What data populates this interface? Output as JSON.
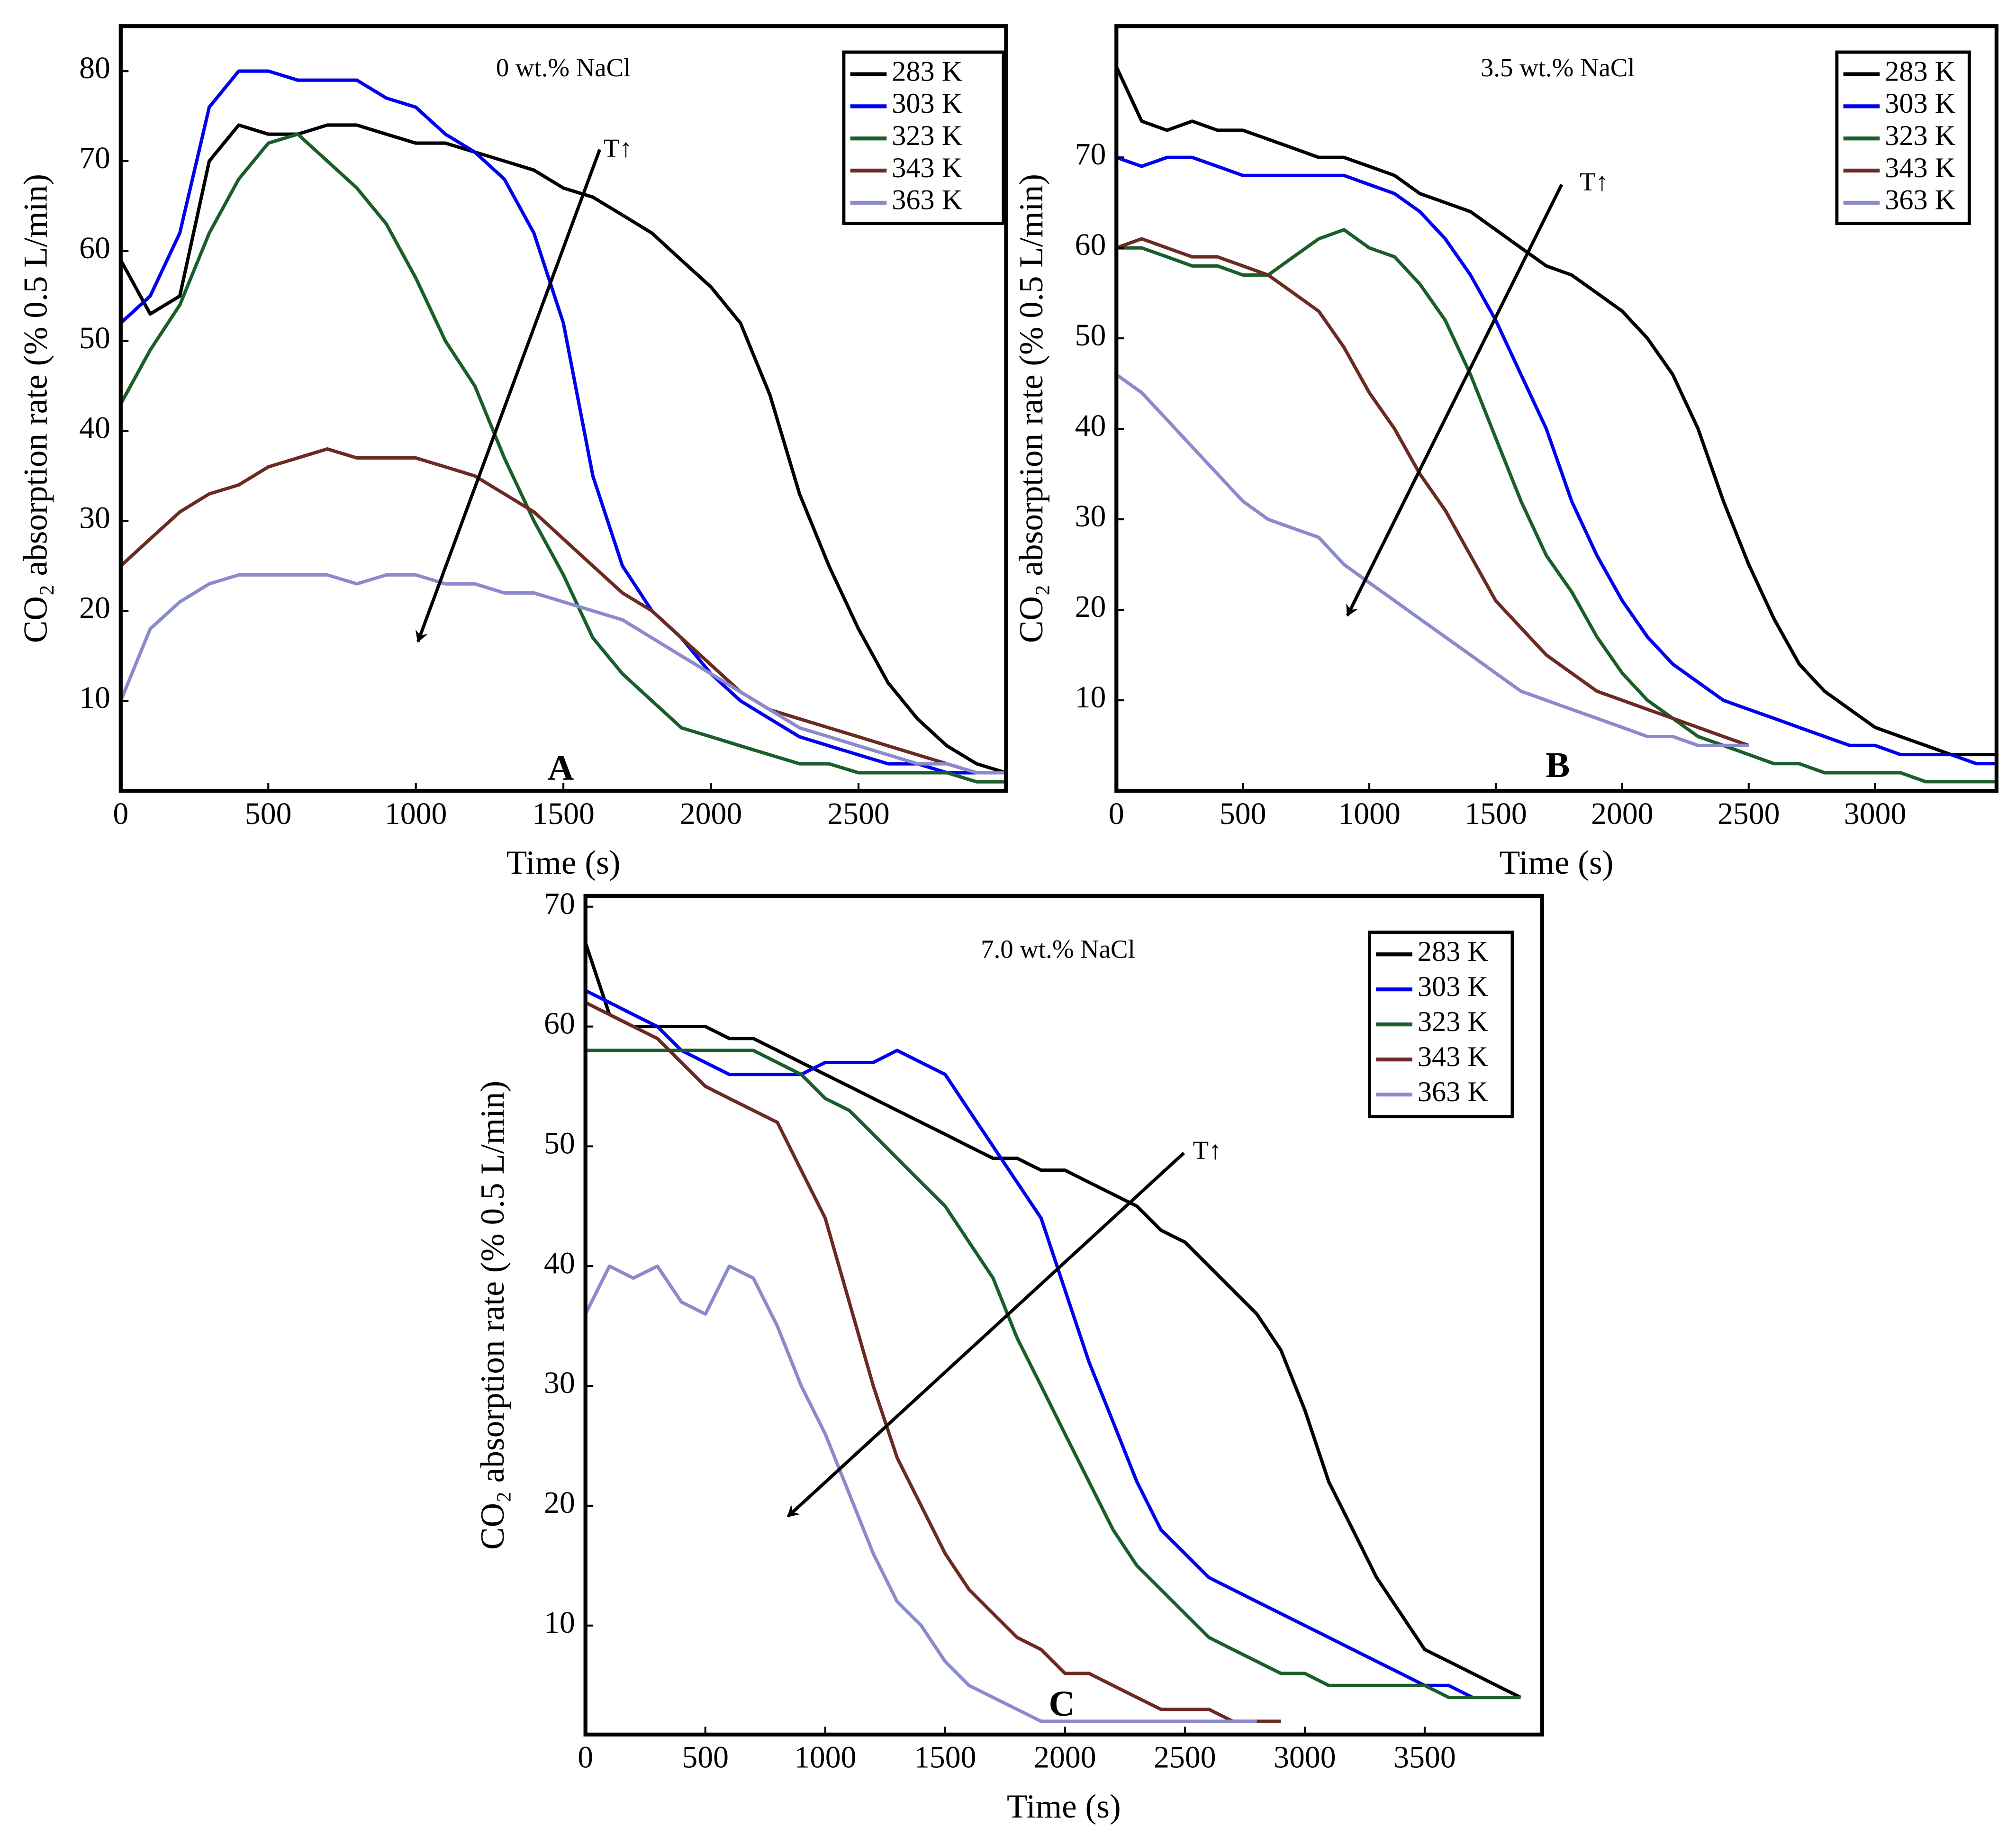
{
  "chart_data": [
    {
      "type": "line",
      "title": "0 wt.% NaCl",
      "label": "A",
      "annotation": "T↑",
      "xlabel": "Time (s)",
      "ylabel": "CO₂ absorption rate (% 0.5 L/min)",
      "xlim": [
        0,
        3000
      ],
      "ylim": [
        0,
        85
      ],
      "xticks": [
        0,
        500,
        1000,
        1500,
        2000,
        2500
      ],
      "yticks": [
        10,
        20,
        30,
        40,
        50,
        60,
        70,
        80
      ],
      "x": [
        0,
        100,
        200,
        300,
        400,
        500,
        600,
        700,
        800,
        900,
        1000,
        1100,
        1200,
        1300,
        1400,
        1500,
        1600,
        1700,
        1800,
        1900,
        2000,
        2100,
        2200,
        2300,
        2400,
        2500,
        2600,
        2700,
        2800,
        2900,
        3000
      ],
      "series": [
        {
          "name": "283 K",
          "color": "#000000",
          "values": [
            59,
            53,
            55,
            70,
            74,
            73,
            73,
            74,
            74,
            73,
            72,
            72,
            71,
            70,
            69,
            67,
            66,
            64,
            62,
            59,
            56,
            52,
            44,
            33,
            25,
            18,
            12,
            8,
            5,
            3,
            2
          ]
        },
        {
          "name": "303 K",
          "color": "#0000ee",
          "values": [
            52,
            55,
            62,
            76,
            80,
            80,
            79,
            79,
            79,
            77,
            76,
            73,
            71,
            68,
            62,
            52,
            35,
            25,
            20,
            17,
            13,
            10,
            8,
            6,
            5,
            4,
            3,
            3,
            2,
            2,
            2
          ]
        },
        {
          "name": "323 K",
          "color": "#1a5e2a",
          "values": [
            43,
            49,
            54,
            62,
            68,
            72,
            73,
            70,
            67,
            63,
            57,
            50,
            45,
            37,
            30,
            24,
            17,
            13,
            10,
            7,
            6,
            5,
            4,
            3,
            3,
            2,
            2,
            2,
            2,
            1,
            1
          ]
        },
        {
          "name": "343 K",
          "color": "#6b2a22",
          "values": [
            25,
            28,
            31,
            33,
            34,
            36,
            37,
            38,
            37,
            37,
            37,
            36,
            35,
            33,
            31,
            28,
            25,
            22,
            20,
            17,
            14,
            11,
            9,
            8,
            7,
            6,
            5,
            4,
            3,
            2,
            2
          ]
        },
        {
          "name": "363 K",
          "color": "#8a8acc",
          "values": [
            10,
            18,
            21,
            23,
            24,
            24,
            24,
            24,
            23,
            24,
            24,
            23,
            23,
            22,
            22,
            21,
            20,
            19,
            17,
            15,
            13,
            11,
            9,
            7,
            6,
            5,
            4,
            3,
            3,
            2,
            2
          ]
        }
      ]
    },
    {
      "type": "line",
      "title": "3.5 wt.% NaCl",
      "label": "B",
      "annotation": "T↑",
      "xlabel": "Time (s)",
      "ylabel": "CO₂ absorption rate (% 0.5 L/min)",
      "xlim": [
        0,
        3480
      ],
      "ylim": [
        0,
        84.5
      ],
      "xticks": [
        0,
        500,
        1000,
        1500,
        2000,
        2500,
        3000
      ],
      "yticks": [
        10,
        20,
        30,
        40,
        50,
        60,
        70
      ],
      "x": [
        0,
        100,
        200,
        300,
        400,
        500,
        600,
        700,
        800,
        900,
        1000,
        1100,
        1200,
        1300,
        1400,
        1500,
        1600,
        1700,
        1800,
        1900,
        2000,
        2100,
        2200,
        2300,
        2400,
        2500,
        2600,
        2700,
        2800,
        2900,
        3000,
        3100,
        3200,
        3300,
        3400,
        3500
      ],
      "series": [
        {
          "name": "283 K",
          "color": "#000000",
          "values": [
            80,
            74,
            73,
            74,
            73,
            73,
            72,
            71,
            70,
            70,
            69,
            68,
            66,
            65,
            64,
            62,
            60,
            58,
            57,
            55,
            53,
            50,
            46,
            40,
            32,
            25,
            19,
            14,
            11,
            9,
            7,
            6,
            5,
            4,
            4,
            4
          ]
        },
        {
          "name": "303 K",
          "color": "#0000ee",
          "values": [
            70,
            69,
            70,
            70,
            69,
            68,
            68,
            68,
            68,
            68,
            67,
            66,
            64,
            61,
            57,
            52,
            46,
            40,
            32,
            26,
            21,
            17,
            14,
            12,
            10,
            9,
            8,
            7,
            6,
            5,
            5,
            4,
            4,
            4,
            3,
            3
          ]
        },
        {
          "name": "323 K",
          "color": "#1a5e2a",
          "values": [
            60,
            60,
            59,
            58,
            58,
            57,
            57,
            59,
            61,
            62,
            60,
            59,
            56,
            52,
            46,
            39,
            32,
            26,
            22,
            17,
            13,
            10,
            8,
            6,
            5,
            4,
            3,
            3,
            2,
            2,
            2,
            2,
            1,
            1,
            1,
            1
          ]
        },
        {
          "name": "343 K",
          "color": "#6b2a22",
          "values": [
            60,
            61,
            60,
            59,
            59,
            58,
            57,
            55,
            53,
            49,
            44,
            40,
            35,
            31,
            26,
            21,
            18,
            15,
            13,
            11,
            10,
            9,
            8,
            7,
            6,
            5,
            null,
            null,
            null,
            null,
            null,
            null,
            null,
            null,
            null,
            null
          ]
        },
        {
          "name": "363 K",
          "color": "#8a8acc",
          "values": [
            46,
            44,
            41,
            38,
            35,
            32,
            30,
            29,
            28,
            25,
            23,
            21,
            19,
            17,
            15,
            13,
            11,
            10,
            9,
            8,
            7,
            6,
            6,
            5,
            5,
            5,
            null,
            null,
            null,
            null,
            null,
            null,
            null,
            null,
            null,
            null
          ]
        }
      ]
    },
    {
      "type": "line",
      "title": "7.0 wt.% NaCl",
      "label": "C",
      "annotation": "T↑",
      "xlabel": "Time (s)",
      "ylabel": "CO₂ absorption rate (% 0.5 L/min)",
      "xlim": [
        0,
        3990
      ],
      "ylim": [
        0.9,
        70.9
      ],
      "xticks": [
        0,
        500,
        1000,
        1500,
        2000,
        2500,
        3000,
        3500
      ],
      "yticks": [
        10,
        20,
        30,
        40,
        50,
        60,
        70
      ],
      "x": [
        0,
        100,
        200,
        300,
        400,
        500,
        600,
        700,
        800,
        900,
        1000,
        1100,
        1200,
        1300,
        1400,
        1500,
        1600,
        1700,
        1800,
        1900,
        2000,
        2100,
        2200,
        2300,
        2400,
        2500,
        2600,
        2700,
        2800,
        2900,
        3000,
        3100,
        3200,
        3300,
        3400,
        3500,
        3600,
        3700,
        3800,
        3900
      ],
      "series": [
        {
          "name": "283 K",
          "color": "#000000",
          "values": [
            67,
            61,
            60,
            60,
            60,
            60,
            59,
            59,
            58,
            57,
            56,
            55,
            54,
            53,
            52,
            51,
            50,
            49,
            49,
            48,
            48,
            47,
            46,
            45,
            43,
            42,
            40,
            38,
            36,
            33,
            28,
            22,
            18,
            14,
            11,
            8,
            7,
            6,
            5,
            4
          ]
        },
        {
          "name": "303 K",
          "color": "#0000ee",
          "values": [
            63,
            62,
            61,
            60,
            58,
            57,
            56,
            56,
            56,
            56,
            57,
            57,
            57,
            58,
            57,
            56,
            53,
            50,
            47,
            44,
            38,
            32,
            27,
            22,
            18,
            16,
            14,
            13,
            12,
            11,
            10,
            9,
            8,
            7,
            6,
            5,
            5,
            4,
            4,
            4
          ]
        },
        {
          "name": "323 K",
          "color": "#1a5e2a",
          "values": [
            58,
            58,
            58,
            58,
            58,
            58,
            58,
            58,
            57,
            56,
            54,
            53,
            51,
            49,
            47,
            45,
            42,
            39,
            34,
            30,
            26,
            22,
            18,
            15,
            13,
            11,
            9,
            8,
            7,
            6,
            6,
            5,
            5,
            5,
            5,
            5,
            4,
            4,
            4,
            4
          ]
        },
        {
          "name": "343 K",
          "color": "#6b2a22",
          "values": [
            62,
            61,
            60,
            59,
            57,
            55,
            54,
            53,
            52,
            48,
            44,
            37,
            30,
            24,
            20,
            16,
            13,
            11,
            9,
            8,
            6,
            6,
            5,
            4,
            3,
            3,
            3,
            2,
            2,
            2,
            null,
            null,
            null,
            null,
            null,
            null,
            null,
            null,
            null,
            null
          ]
        },
        {
          "name": "363 K",
          "color": "#8a8acc",
          "values": [
            36,
            40,
            39,
            40,
            37,
            36,
            40,
            39,
            35,
            30,
            26,
            21,
            16,
            12,
            10,
            7,
            5,
            4,
            3,
            2,
            2,
            2,
            2,
            2,
            2,
            2,
            2,
            2,
            2,
            null,
            null,
            null,
            null,
            null,
            null,
            null,
            null,
            null,
            null,
            null
          ]
        }
      ]
    }
  ]
}
